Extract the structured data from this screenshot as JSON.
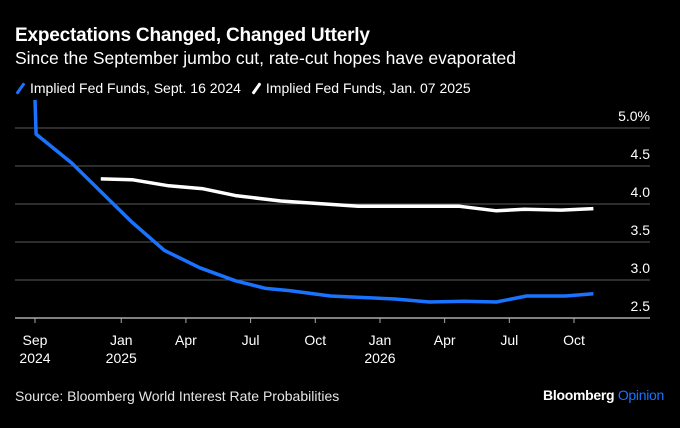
{
  "chart_data": {
    "type": "line",
    "title": "Expectations Changed, Changed Utterly",
    "subtitle": "Since the September jumbo cut, rate-cut hopes have evaporated",
    "xlabel": "",
    "ylabel": "",
    "x_unit": "months since Sep 2024",
    "ylim": [
      2.5,
      5.0
    ],
    "xlim": [
      0,
      27.3
    ],
    "y_ticks": [
      {
        "value": 5.0,
        "label": "5.0%"
      },
      {
        "value": 4.5,
        "label": "4.5"
      },
      {
        "value": 4.0,
        "label": "4.0"
      },
      {
        "value": 3.5,
        "label": "3.5"
      },
      {
        "value": 3.0,
        "label": "3.0"
      },
      {
        "value": 2.5,
        "label": "2.5"
      }
    ],
    "x_ticks": [
      {
        "value": 0,
        "label": "Sep",
        "sublabel": "2024"
      },
      {
        "value": 4,
        "label": "Jan",
        "sublabel": "2025"
      },
      {
        "value": 7,
        "label": "Apr",
        "sublabel": ""
      },
      {
        "value": 10,
        "label": "Jul",
        "sublabel": ""
      },
      {
        "value": 13,
        "label": "Oct",
        "sublabel": ""
      },
      {
        "value": 16,
        "label": "Jan",
        "sublabel": "2026"
      },
      {
        "value": 19,
        "label": "Apr",
        "sublabel": ""
      },
      {
        "value": 22,
        "label": "Jul",
        "sublabel": ""
      },
      {
        "value": 25,
        "label": "Oct",
        "sublabel": ""
      }
    ],
    "grid": true,
    "y_axis_side": "right",
    "legend_position": "top-left",
    "series": [
      {
        "name": "Implied Fed Funds, Sept. 16 2024",
        "color": "#1a73ff",
        "x": [
          0,
          0.05,
          1.7,
          4.5,
          6.0,
          7.65,
          9.3,
          10.7,
          11.8,
          13.7,
          16.7,
          18.3,
          19.9,
          21.4,
          22.8,
          24.6,
          25.9
        ],
        "y": [
          5.37,
          4.92,
          4.54,
          3.76,
          3.39,
          3.16,
          2.99,
          2.89,
          2.86,
          2.79,
          2.75,
          2.71,
          2.72,
          2.71,
          2.79,
          2.79,
          2.82
        ]
      },
      {
        "name": "Implied Fed Funds, Jan. 07 2025",
        "color": "#ffffff",
        "x": [
          3.05,
          4.5,
          6.2,
          7.8,
          9.3,
          11.4,
          15.0,
          19.7,
          21.4,
          22.7,
          24.4,
          25.9
        ],
        "y": [
          4.33,
          4.32,
          4.24,
          4.2,
          4.11,
          4.04,
          3.97,
          3.97,
          3.91,
          3.93,
          3.92,
          3.94
        ]
      }
    ]
  },
  "footer": {
    "source": "Source: Bloomberg World Interest Rate Probabilities",
    "brand_main": "Bloomberg",
    "brand_accent": "Opinion"
  }
}
